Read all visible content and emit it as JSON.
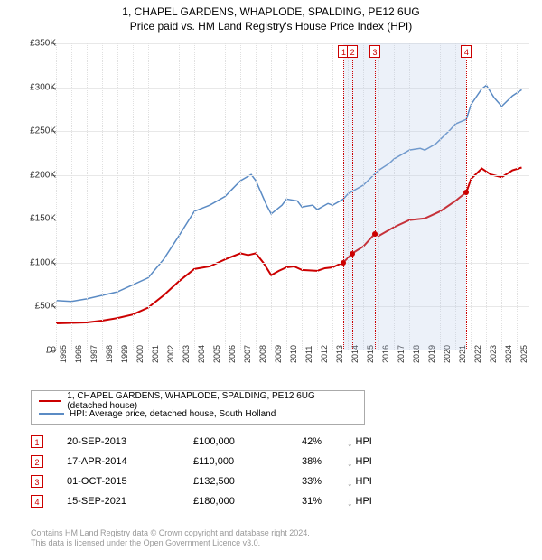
{
  "title_line1": "1, CHAPEL GARDENS, WHAPLODE, SPALDING, PE12 6UG",
  "title_line2": "Price paid vs. HM Land Registry's House Price Index (HPI)",
  "chart": {
    "type": "line",
    "background_color": "#ffffff",
    "grid_color": "#e8e8e8",
    "y_axis": {
      "min": 0,
      "max": 350000,
      "step": 50000,
      "labels": [
        "£0",
        "£50K",
        "£100K",
        "£150K",
        "£200K",
        "£250K",
        "£300K",
        "£350K"
      ],
      "fontsize": 10
    },
    "x_axis": {
      "min": 1995,
      "max": 2025.8,
      "ticks": [
        1995,
        1996,
        1997,
        1998,
        1999,
        2000,
        2001,
        2002,
        2003,
        2004,
        2005,
        2006,
        2007,
        2008,
        2009,
        2010,
        2011,
        2012,
        2013,
        2014,
        2015,
        2016,
        2017,
        2018,
        2019,
        2020,
        2021,
        2022,
        2023,
        2024,
        2025
      ],
      "fontsize": 9
    },
    "shaded_regions": [
      {
        "start": 2013.72,
        "end": 2014.29
      },
      {
        "start": 2014.29,
        "end": 2015.75
      },
      {
        "start": 2015.75,
        "end": 2021.71
      }
    ],
    "markers": [
      {
        "n": "1",
        "year": 2013.72,
        "price": 100000
      },
      {
        "n": "2",
        "year": 2014.29,
        "price": 110000
      },
      {
        "n": "3",
        "year": 2015.75,
        "price": 132500
      },
      {
        "n": "4",
        "year": 2021.71,
        "price": 180000
      }
    ],
    "series_property": {
      "color": "#cc0000",
      "width": 2,
      "points": [
        [
          1995,
          30000
        ],
        [
          1996,
          30500
        ],
        [
          1997,
          31000
        ],
        [
          1998,
          33000
        ],
        [
          1999,
          36000
        ],
        [
          2000,
          40000
        ],
        [
          2001,
          48000
        ],
        [
          2002,
          62000
        ],
        [
          2003,
          78000
        ],
        [
          2004,
          92000
        ],
        [
          2005,
          95000
        ],
        [
          2006,
          103000
        ],
        [
          2007,
          110000
        ],
        [
          2007.5,
          108000
        ],
        [
          2008,
          110000
        ],
        [
          2008.5,
          99000
        ],
        [
          2009,
          85000
        ],
        [
          2009.5,
          90000
        ],
        [
          2010,
          94000
        ],
        [
          2010.5,
          95000
        ],
        [
          2011,
          91000
        ],
        [
          2012,
          90000
        ],
        [
          2012.5,
          93000
        ],
        [
          2013,
          94000
        ],
        [
          2013.72,
          100000
        ],
        [
          2014.29,
          110000
        ],
        [
          2015,
          118000
        ],
        [
          2015.75,
          132500
        ],
        [
          2016,
          130000
        ],
        [
          2017,
          140000
        ],
        [
          2018,
          148000
        ],
        [
          2019,
          150000
        ],
        [
          2020,
          158000
        ],
        [
          2021,
          170000
        ],
        [
          2021.71,
          180000
        ],
        [
          2022,
          195000
        ],
        [
          2022.7,
          207000
        ],
        [
          2023.3,
          200000
        ],
        [
          2024,
          197000
        ],
        [
          2024.7,
          205000
        ],
        [
          2025.3,
          208000
        ]
      ]
    },
    "series_hpi": {
      "color": "#5b8bc4",
      "width": 1.5,
      "points": [
        [
          1995,
          56000
        ],
        [
          1996,
          55000
        ],
        [
          1997,
          58000
        ],
        [
          1998,
          62000
        ],
        [
          1999,
          66000
        ],
        [
          2000,
          74000
        ],
        [
          2001,
          82000
        ],
        [
          2002,
          103000
        ],
        [
          2003,
          130000
        ],
        [
          2004,
          158000
        ],
        [
          2005,
          165000
        ],
        [
          2006,
          175000
        ],
        [
          2007,
          193000
        ],
        [
          2007.7,
          200000
        ],
        [
          2008,
          193000
        ],
        [
          2008.7,
          165000
        ],
        [
          2009,
          155000
        ],
        [
          2009.7,
          165000
        ],
        [
          2010,
          172000
        ],
        [
          2010.7,
          170000
        ],
        [
          2011,
          163000
        ],
        [
          2011.7,
          165000
        ],
        [
          2012,
          160000
        ],
        [
          2012.7,
          167000
        ],
        [
          2013,
          165000
        ],
        [
          2013.7,
          172000
        ],
        [
          2014,
          178000
        ],
        [
          2014.7,
          185000
        ],
        [
          2015,
          188000
        ],
        [
          2015.7,
          200000
        ],
        [
          2016,
          205000
        ],
        [
          2016.7,
          213000
        ],
        [
          2017,
          218000
        ],
        [
          2017.7,
          225000
        ],
        [
          2018,
          228000
        ],
        [
          2018.7,
          230000
        ],
        [
          2019,
          228000
        ],
        [
          2019.7,
          235000
        ],
        [
          2020,
          240000
        ],
        [
          2020.7,
          252000
        ],
        [
          2021,
          258000
        ],
        [
          2021.7,
          263000
        ],
        [
          2022,
          280000
        ],
        [
          2022.7,
          298000
        ],
        [
          2023,
          302000
        ],
        [
          2023.5,
          288000
        ],
        [
          2024,
          278000
        ],
        [
          2024.7,
          290000
        ],
        [
          2025.3,
          297000
        ]
      ]
    }
  },
  "legend": {
    "row1_color": "#cc0000",
    "row1_label": "1, CHAPEL GARDENS, WHAPLODE, SPALDING, PE12 6UG (detached house)",
    "row2_color": "#5b8bc4",
    "row2_label": "HPI: Average price, detached house, South Holland"
  },
  "sales": [
    {
      "n": "1",
      "date": "20-SEP-2013",
      "price": "£100,000",
      "diff": "42%",
      "ref": "HPI"
    },
    {
      "n": "2",
      "date": "17-APR-2014",
      "price": "£110,000",
      "diff": "38%",
      "ref": "HPI"
    },
    {
      "n": "3",
      "date": "01-OCT-2015",
      "price": "£132,500",
      "diff": "33%",
      "ref": "HPI"
    },
    {
      "n": "4",
      "date": "15-SEP-2021",
      "price": "£180,000",
      "diff": "31%",
      "ref": "HPI"
    }
  ],
  "footer_line1": "Contains HM Land Registry data © Crown copyright and database right 2024.",
  "footer_line2": "This data is licensed under the Open Government Licence v3.0."
}
